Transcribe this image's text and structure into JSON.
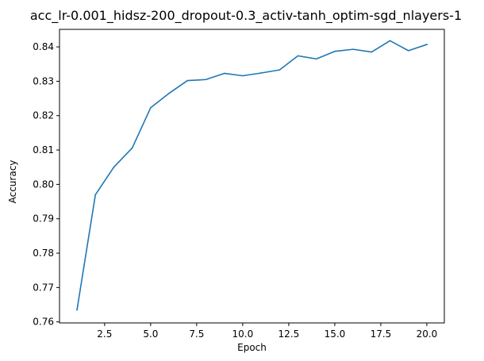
{
  "chart_data": {
    "type": "line",
    "title": "acc_lr-0.001_hidsz-200_dropout-0.3_activ-tanh_optim-sgd_nlayers-1",
    "xlabel": "Epoch",
    "ylabel": "Accuracy",
    "xlim": [
      0.05,
      20.95
    ],
    "ylim": [
      0.7597,
      0.8451
    ],
    "xticks": [
      2.5,
      5.0,
      7.5,
      10.0,
      12.5,
      15.0,
      17.5,
      20.0
    ],
    "xtick_labels": [
      "2.5",
      "5.0",
      "7.5",
      "10.0",
      "12.5",
      "15.0",
      "17.5",
      "20.0"
    ],
    "yticks": [
      0.76,
      0.77,
      0.78,
      0.79,
      0.8,
      0.81,
      0.82,
      0.83,
      0.84
    ],
    "ytick_labels": [
      "0.76",
      "0.77",
      "0.78",
      "0.79",
      "0.80",
      "0.81",
      "0.82",
      "0.83",
      "0.84"
    ],
    "grid": false,
    "legend": "none",
    "series": [
      {
        "color": "#1f77b4",
        "x": [
          1,
          2,
          3,
          4,
          5,
          6,
          7,
          8,
          9,
          10,
          11,
          12,
          13,
          14,
          15,
          16,
          17,
          18,
          19,
          20
        ],
        "y": [
          0.7635,
          0.797,
          0.805,
          0.8106,
          0.8223,
          0.8265,
          0.8302,
          0.8305,
          0.8323,
          0.8316,
          0.8324,
          0.8333,
          0.8374,
          0.8365,
          0.8387,
          0.8393,
          0.8385,
          0.8418,
          0.8389,
          0.8407
        ]
      }
    ]
  }
}
